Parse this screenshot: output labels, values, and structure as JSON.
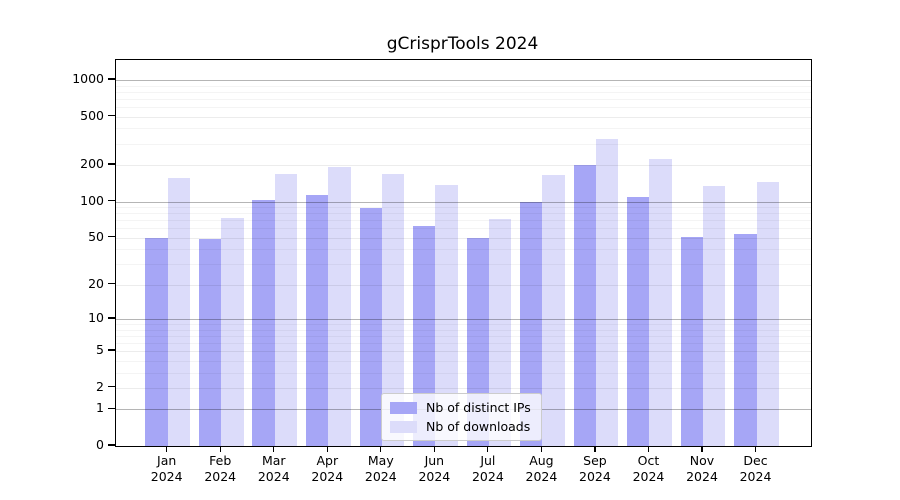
{
  "chart": {
    "title": "gCrisprTools 2024",
    "legend": {
      "items": [
        {
          "label": "Nb of distinct IPs",
          "color": "#a6a6f6"
        },
        {
          "label": "Nb of downloads",
          "color": "#dcdcfa"
        }
      ],
      "position": "lower center"
    },
    "colors": {
      "bar_dark": "#a6a6f6",
      "bar_light": "#dcdcfa",
      "gridline_pow10": "#b5b5b5",
      "gridline_major": "#ebebeb",
      "gridline_minor": "#f3f3f3",
      "frame": "#000000"
    },
    "chart_data": {
      "type": "bar",
      "title": "gCrisprTools 2024",
      "xlabel": "",
      "ylabel": "",
      "scale": "log1p",
      "grid": "on",
      "legend_position": "lower center",
      "categories": [
        "Jan",
        "Feb",
        "Mar",
        "Apr",
        "May",
        "Jun",
        "Jul",
        "Aug",
        "Sep",
        "Oct",
        "Nov",
        "Dec"
      ],
      "x_year": "2024",
      "series": [
        {
          "name": "Nb of distinct IPs",
          "values": [
            50,
            49,
            102,
            114,
            89,
            63,
            50,
            100,
            199,
            108,
            51,
            54
          ]
        },
        {
          "name": "Nb of downloads",
          "values": [
            156,
            73,
            168,
            192,
            168,
            136,
            72,
            165,
            330,
            226,
            135,
            145
          ]
        }
      ],
      "y_ticks": [
        0,
        1,
        2,
        5,
        10,
        20,
        50,
        100,
        200,
        500,
        1000
      ],
      "y_minor_ticks": [
        3,
        4,
        6,
        7,
        8,
        9,
        30,
        40,
        60,
        70,
        80,
        90,
        300,
        400,
        600,
        700,
        800,
        900
      ],
      "ylim": [
        0,
        1450
      ]
    }
  }
}
